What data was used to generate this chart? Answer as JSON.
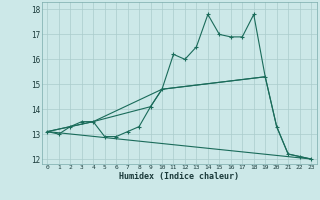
{
  "xlabel": "Humidex (Indice chaleur)",
  "bg_color": "#cce8e8",
  "grid_color": "#aacccc",
  "line_color": "#1a6b5a",
  "xlim": [
    -0.5,
    23.5
  ],
  "ylim": [
    11.8,
    18.3
  ],
  "yticks": [
    12,
    13,
    14,
    15,
    16,
    17,
    18
  ],
  "xticks": [
    0,
    1,
    2,
    3,
    4,
    5,
    6,
    7,
    8,
    9,
    10,
    11,
    12,
    13,
    14,
    15,
    16,
    17,
    18,
    19,
    20,
    21,
    22,
    23
  ],
  "lines": [
    {
      "x": [
        0,
        1,
        2,
        3,
        4,
        5,
        6,
        7,
        8,
        9,
        10,
        11,
        12,
        13,
        14,
        15,
        16,
        17,
        18,
        19,
        20,
        21,
        22,
        23
      ],
      "y": [
        13.1,
        13.0,
        13.3,
        13.5,
        13.5,
        12.9,
        12.9,
        13.1,
        13.3,
        14.1,
        14.8,
        16.2,
        16.0,
        16.5,
        17.8,
        17.0,
        16.9,
        16.9,
        17.8,
        15.3,
        13.3,
        12.2,
        12.1,
        12.0
      ],
      "has_marker": true
    },
    {
      "x": [
        0,
        4,
        9,
        10,
        19,
        20,
        21,
        22,
        23
      ],
      "y": [
        13.1,
        13.5,
        14.1,
        14.8,
        15.3,
        13.3,
        12.2,
        12.1,
        12.0
      ],
      "has_marker": false
    },
    {
      "x": [
        0,
        4,
        10,
        19
      ],
      "y": [
        13.1,
        13.5,
        14.8,
        15.3
      ],
      "has_marker": false
    },
    {
      "x": [
        0,
        23
      ],
      "y": [
        13.1,
        12.0
      ],
      "has_marker": false
    }
  ]
}
